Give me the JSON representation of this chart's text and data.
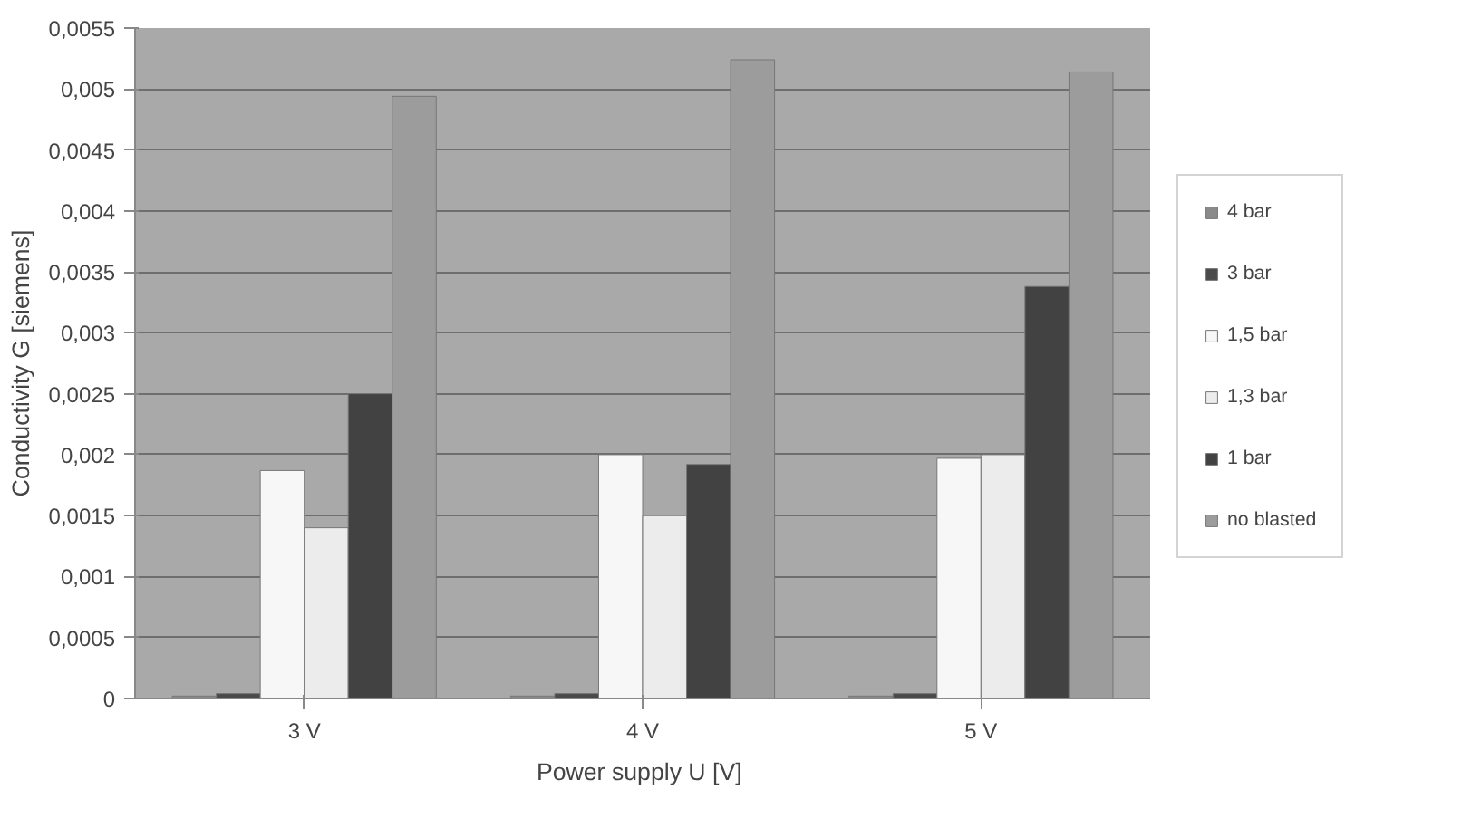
{
  "chart_data": {
    "type": "bar",
    "xlabel": "Power supply U  [V]",
    "ylabel": "Conductivity G [siemens]",
    "categories": [
      "3 V",
      "4 V",
      "5 V"
    ],
    "series": [
      {
        "name": "4 bar",
        "color": "#8a8a8a",
        "values": [
          2e-05,
          2e-05,
          2e-05
        ]
      },
      {
        "name": "3 bar",
        "color": "#4a4a4a",
        "values": [
          4e-05,
          4e-05,
          4e-05
        ]
      },
      {
        "name": "1,5 bar",
        "color": "#f7f7f7",
        "values": [
          0.00187,
          0.002,
          0.00197
        ]
      },
      {
        "name": "1,3 bar",
        "color": "#ececec",
        "values": [
          0.0014,
          0.0015,
          0.002
        ]
      },
      {
        "name": "1 bar",
        "color": "#424242",
        "values": [
          0.0025,
          0.00192,
          0.00338
        ]
      },
      {
        "name": "no blasted",
        "color": "#9c9c9c",
        "values": [
          0.00494,
          0.00524,
          0.00514
        ]
      }
    ],
    "ylim": [
      0,
      0.0055
    ],
    "yticks": [
      0,
      {
        "value": 0.0005,
        "label": "0,0005"
      },
      {
        "value": 0.001,
        "label": "0,001"
      },
      {
        "value": 0.0015,
        "label": "0,0015"
      },
      {
        "value": 0.002,
        "label": "0,002"
      },
      {
        "value": 0.0025,
        "label": "0,0025"
      },
      {
        "value": 0.003,
        "label": "0,003"
      },
      {
        "value": 0.0035,
        "label": "0,0035"
      },
      {
        "value": 0.004,
        "label": "0,004"
      },
      {
        "value": 0.0045,
        "label": "0,0045"
      },
      {
        "value": 0.005,
        "label": "0,005"
      },
      {
        "value": 0.0055,
        "label": "0,0055"
      }
    ],
    "grid": "y",
    "legend": "right"
  }
}
